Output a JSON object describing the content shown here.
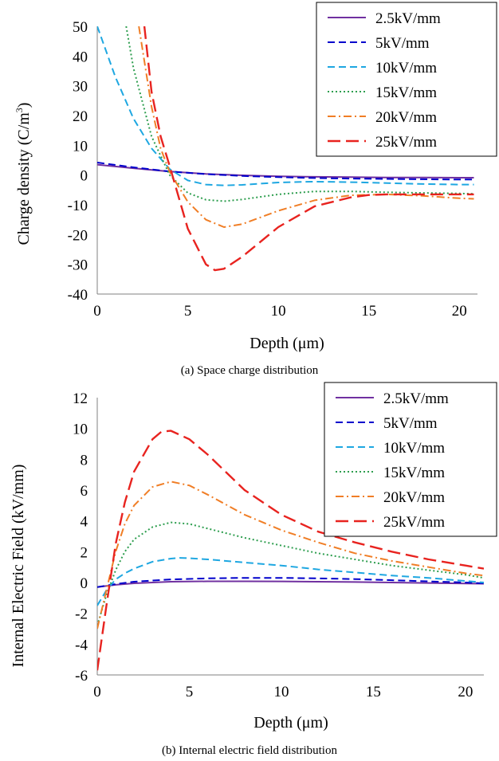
{
  "chart_data": [
    {
      "type": "line",
      "caption": "(a) Space charge distribution",
      "xlabel": "Depth (μm)",
      "ylabel_main": "Charge density (C/m",
      "ylabel_sup": "3",
      "ylabel_close": ")",
      "xlim": [
        0,
        21
      ],
      "ylim": [
        -40,
        50
      ],
      "xticks": [
        "0",
        "5",
        "10",
        "15",
        "20"
      ],
      "yticks": [
        "50",
        "40",
        "30",
        "20",
        "10",
        "0",
        "-10",
        "-20",
        "-30",
        "-40"
      ],
      "legend_position": "top-right",
      "series": [
        {
          "name": "2.5kV/mm",
          "color": "#7030a0",
          "dash": "solid",
          "x": [
            0,
            2,
            4,
            6,
            8,
            10,
            12,
            14,
            16,
            18,
            20,
            20.8
          ],
          "y": [
            3.5,
            2.3,
            1.2,
            0.4,
            -0.1,
            -0.4,
            -0.6,
            -0.7,
            -0.8,
            -0.8,
            -0.9,
            -0.9
          ]
        },
        {
          "name": "5kV/mm",
          "color": "#0000cc",
          "dash": "dash",
          "x": [
            0,
            2,
            4,
            6,
            8,
            10,
            12,
            14,
            16,
            18,
            20,
            20.8
          ],
          "y": [
            4.2,
            2.6,
            1.2,
            0.3,
            -0.3,
            -0.7,
            -1.0,
            -1.2,
            -1.3,
            -1.4,
            -1.5,
            -1.5
          ]
        },
        {
          "name": "10kV/mm",
          "color": "#1ea7e1",
          "dash": "dash",
          "x": [
            0,
            1,
            2,
            3,
            4,
            5,
            6,
            7,
            8,
            10,
            12,
            14,
            16,
            18,
            20,
            20.8
          ],
          "y": [
            50,
            33,
            19,
            9,
            2,
            -1.8,
            -3.2,
            -3.5,
            -3.3,
            -2.5,
            -2.2,
            -2.4,
            -2.7,
            -3.0,
            -3.2,
            -3.2
          ]
        },
        {
          "name": "15kV/mm",
          "color": "#2e9e4f",
          "dash": "dot",
          "x": [
            1.6,
            2,
            3,
            4,
            5,
            6,
            7,
            8,
            10,
            12,
            14,
            16,
            18,
            20,
            20.8
          ],
          "y": [
            50,
            36,
            13,
            0,
            -6,
            -8.3,
            -8.8,
            -8.2,
            -6.5,
            -5.5,
            -5.5,
            -5.8,
            -6.0,
            -6.2,
            -6.3
          ]
        },
        {
          "name": "20kV/mm",
          "color": "#f07e26",
          "dash": "dashdot",
          "x": [
            2.3,
            3,
            3.5,
            4,
            5,
            6,
            7,
            8,
            10,
            12,
            14,
            16,
            18,
            20,
            20.8
          ],
          "y": [
            50,
            23,
            9,
            1,
            -9,
            -15,
            -17.5,
            -16.5,
            -12,
            -8.5,
            -6.8,
            -6.5,
            -7,
            -7.8,
            -8
          ]
        },
        {
          "name": "25kV/mm",
          "color": "#e8231f",
          "dash": "longdash",
          "x": [
            2.6,
            3,
            3.5,
            4,
            5,
            6,
            6.5,
            7,
            8,
            9,
            10,
            12,
            14,
            15,
            16,
            18,
            20,
            20.8
          ],
          "y": [
            50,
            28,
            13,
            3,
            -18,
            -30,
            -32,
            -31.5,
            -27.5,
            -22.5,
            -17.5,
            -10.5,
            -7.5,
            -6.7,
            -6.5,
            -6.5,
            -6.5,
            -6.5
          ]
        }
      ]
    },
    {
      "type": "line",
      "caption": "(b) Internal electric field distribution",
      "xlabel": "Depth (μm)",
      "ylabel_main": "Internal Electric Field (kV/mm)",
      "ylabel_sup": "",
      "ylabel_close": "",
      "xlim": [
        0,
        21
      ],
      "ylim": [
        -6,
        12
      ],
      "xticks": [
        "0",
        "5",
        "10",
        "15",
        "20"
      ],
      "yticks": [
        "12",
        "10",
        "8",
        "6",
        "4",
        "2",
        "0",
        "-2",
        "-4",
        "-6"
      ],
      "legend_position": "top-right",
      "series": [
        {
          "name": "2.5kV/mm",
          "color": "#7030a0",
          "dash": "solid",
          "x": [
            0,
            1,
            2,
            4,
            6,
            8,
            10,
            12,
            14,
            16,
            18,
            20,
            21
          ],
          "y": [
            -0.3,
            -0.15,
            -0.05,
            0.05,
            0.08,
            0.08,
            0.07,
            0.05,
            0.03,
            0.0,
            -0.03,
            -0.06,
            -0.08
          ]
        },
        {
          "name": "5kV/mm",
          "color": "#0000cc",
          "dash": "dash",
          "x": [
            0,
            1,
            2,
            4,
            6,
            8,
            10,
            12,
            14,
            16,
            18,
            20,
            21
          ],
          "y": [
            -0.3,
            -0.1,
            0.05,
            0.2,
            0.27,
            0.3,
            0.3,
            0.27,
            0.22,
            0.15,
            0.07,
            0.0,
            -0.05
          ]
        },
        {
          "name": "10kV/mm",
          "color": "#1ea7e1",
          "dash": "dash",
          "x": [
            0,
            0.5,
            1,
            1.5,
            2,
            3,
            4,
            4.5,
            5,
            6,
            8,
            10,
            12,
            14,
            16,
            18,
            20,
            21
          ],
          "y": [
            -1.5,
            -0.5,
            0.2,
            0.6,
            0.9,
            1.35,
            1.55,
            1.6,
            1.58,
            1.5,
            1.3,
            1.1,
            0.85,
            0.65,
            0.45,
            0.3,
            0.1,
            0.0
          ]
        },
        {
          "name": "15kV/mm",
          "color": "#2e9e4f",
          "dash": "dot",
          "x": [
            0,
            0.5,
            1,
            1.5,
            2,
            3,
            4,
            5,
            6,
            8,
            10,
            12,
            14,
            16,
            18,
            20,
            21
          ],
          "y": [
            -2.8,
            -0.8,
            0.8,
            2.0,
            2.8,
            3.6,
            3.9,
            3.8,
            3.5,
            2.9,
            2.4,
            1.9,
            1.5,
            1.1,
            0.8,
            0.5,
            0.3
          ]
        },
        {
          "name": "20kV/mm",
          "color": "#f07e26",
          "dash": "dashdot",
          "x": [
            0,
            0.5,
            1,
            1.5,
            2,
            3,
            4,
            5,
            6,
            8,
            10,
            12,
            14,
            16,
            18,
            20,
            21
          ],
          "y": [
            -3.0,
            -0.5,
            2.0,
            3.8,
            5.0,
            6.2,
            6.55,
            6.3,
            5.7,
            4.4,
            3.4,
            2.6,
            1.9,
            1.4,
            1.0,
            0.6,
            0.45
          ]
        },
        {
          "name": "25kV/mm",
          "color": "#e8231f",
          "dash": "longdash",
          "x": [
            0,
            0.5,
            1,
            1.5,
            2,
            3,
            3.5,
            4,
            5,
            6,
            8,
            10,
            12,
            14,
            16,
            18,
            20,
            21
          ],
          "y": [
            -5.7,
            -1.5,
            2.5,
            5.2,
            7.2,
            9.3,
            9.8,
            9.85,
            9.3,
            8.3,
            6.0,
            4.4,
            3.3,
            2.6,
            2.0,
            1.5,
            1.1,
            0.9
          ]
        }
      ]
    }
  ]
}
